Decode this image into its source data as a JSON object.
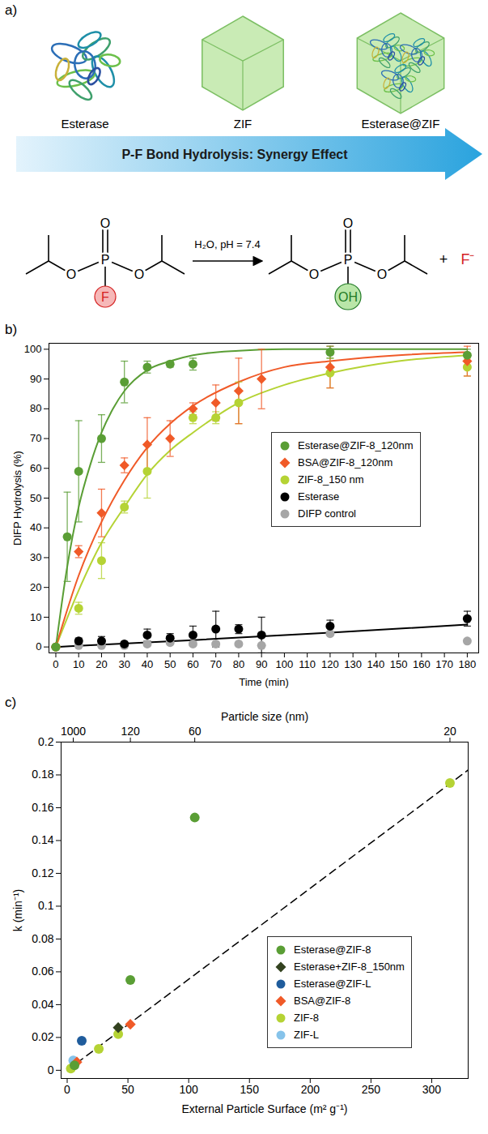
{
  "diagram": {
    "panel": "a)",
    "items": [
      "Esterase",
      "ZIF",
      "Esterase@ZIF"
    ],
    "arrow_text": "P-F Bond Hydrolysis: Synergy Effect",
    "reaction": {
      "conditions": "H₂O, pH = 7.4",
      "reactant": {
        "top": "O",
        "center": "P",
        "left": "O",
        "right": "O",
        "substituent": "F"
      },
      "product": {
        "top": "O",
        "center": "P",
        "left": "O",
        "right": "O",
        "substituent": "OH"
      },
      "plus": "+",
      "byproduct": "F⁻"
    }
  },
  "chart_data": [
    {
      "panel": "b)",
      "type": "scatter",
      "x_label": "Time (min)",
      "y_label": "DIFP Hydrolysis (%)",
      "xlim": [
        -3,
        185
      ],
      "ylim": [
        -2,
        102
      ],
      "xticks": [
        0,
        10,
        20,
        30,
        40,
        50,
        60,
        70,
        80,
        90,
        100,
        110,
        120,
        130,
        140,
        150,
        160,
        170,
        180
      ],
      "yticks": [
        0,
        10,
        20,
        30,
        40,
        50,
        60,
        70,
        80,
        90,
        100
      ],
      "legend": "right",
      "series": [
        {
          "name": "Esterase@ZIF-8_120nm",
          "color": "#5a9e35",
          "marker": "circle",
          "x": [
            0,
            5,
            10,
            20,
            30,
            40,
            50,
            60,
            120,
            180
          ],
          "values": [
            0,
            37,
            59,
            70,
            89,
            94,
            95,
            95,
            99,
            98
          ],
          "errors": [
            0,
            15,
            17,
            8,
            7,
            2,
            1,
            2,
            2,
            2
          ],
          "fit": {
            "x": [
              0,
              5,
              10,
              15,
              20,
              25,
              30,
              40,
              50,
              60,
              80,
              100,
              180
            ],
            "values": [
              0,
              27,
              47,
              61,
              72,
              80,
              86,
              93,
              96,
              98,
              99.5,
              100,
              100
            ]
          }
        },
        {
          "name": "BSA@ZIF-8_120nm",
          "color": "#f05a28",
          "marker": "diamond",
          "x": [
            0,
            10,
            20,
            30,
            40,
            50,
            60,
            70,
            80,
            90,
            120,
            180
          ],
          "values": [
            0,
            32,
            45,
            61,
            68,
            70,
            80,
            82,
            86,
            90,
            94,
            96
          ],
          "errors": [
            0,
            2,
            8,
            2.5,
            9,
            6,
            2,
            6,
            11,
            10,
            7,
            5
          ],
          "fit": {
            "x": [
              0,
              10,
              20,
              30,
              40,
              50,
              60,
              80,
              100,
              120,
              150,
              180
            ],
            "values": [
              0,
              24,
              42,
              56,
              67,
              75,
              81,
              89,
              94,
              96,
              98,
              99
            ]
          }
        },
        {
          "name": "ZIF-8_150 nm",
          "color": "#b5d334",
          "marker": "circle",
          "x": [
            0,
            10,
            20,
            30,
            40,
            60,
            70,
            80,
            120,
            180
          ],
          "values": [
            0,
            13,
            29,
            47,
            59,
            77,
            77,
            82,
            92,
            94
          ],
          "errors": [
            0,
            2,
            6,
            2,
            9,
            2,
            2,
            7,
            5,
            3
          ],
          "fit": {
            "x": [
              0,
              10,
              20,
              30,
              40,
              50,
              60,
              80,
              100,
              120,
              150,
              180
            ],
            "values": [
              0,
              19,
              35,
              47,
              58,
              66,
              72,
              82,
              88,
              92,
              96,
              98
            ]
          }
        },
        {
          "name": "Esterase",
          "color": "#000000",
          "marker": "circle",
          "x": [
            0,
            10,
            20,
            30,
            40,
            50,
            60,
            70,
            80,
            90,
            120,
            180
          ],
          "values": [
            0,
            2,
            2,
            1,
            4,
            3,
            4,
            6,
            6,
            4,
            7,
            9.5
          ],
          "errors": [
            0,
            1,
            1.5,
            0.5,
            2,
            1.5,
            3,
            6,
            1.5,
            6,
            2,
            2.5
          ],
          "fit": {
            "x": [
              0,
              60,
              120,
              180
            ],
            "values": [
              0,
              2.3,
              4.8,
              7.5
            ]
          }
        },
        {
          "name": "DIFP control",
          "color": "#a6a6a6",
          "marker": "circle",
          "x": [
            0,
            10,
            20,
            30,
            40,
            50,
            60,
            70,
            80,
            90,
            120,
            180
          ],
          "values": [
            0,
            0.5,
            0.5,
            0.5,
            1,
            1.5,
            1,
            1,
            1,
            0.5,
            4.5,
            2
          ]
        }
      ]
    },
    {
      "panel": "c)",
      "type": "scatter",
      "x_label": "External Particle Surface (m² g⁻¹)",
      "y_label": "k (min⁻¹)",
      "x2_label": "Particle size (nm)",
      "xlim": [
        -5,
        330
      ],
      "ylim": [
        -0.005,
        0.2
      ],
      "xticks": [
        0,
        50,
        100,
        150,
        200,
        250,
        300
      ],
      "yticks": [
        0,
        0.02,
        0.04,
        0.06,
        0.08,
        0.1,
        0.12,
        0.14,
        0.16,
        0.18,
        0.2
      ],
      "x2ticks": [
        {
          "value": 5,
          "label": "1000"
        },
        {
          "value": 52,
          "label": "120"
        },
        {
          "value": 105,
          "label": "60"
        },
        {
          "value": 315,
          "label": "20"
        }
      ],
      "legend": "bottom-right",
      "series": [
        {
          "name": "Esterase@ZIF-8",
          "color": "#5a9e35",
          "marker": "circle",
          "x": [
            105,
            52,
            6
          ],
          "values": [
            0.154,
            0.055,
            0.003
          ]
        },
        {
          "name": "Esterase+ZIF-8_150nm",
          "color": "#33421f",
          "marker": "diamond",
          "x": [
            42
          ],
          "values": [
            0.026
          ]
        },
        {
          "name": "Esterase@ZIF-L",
          "color": "#1f5c9c",
          "marker": "circle",
          "x": [
            12
          ],
          "values": [
            0.018
          ]
        },
        {
          "name": "BSA@ZIF-8",
          "color": "#f05a28",
          "marker": "diamond",
          "x": [
            52,
            8
          ],
          "values": [
            0.028,
            0.005
          ]
        },
        {
          "name": "ZIF-8",
          "color": "#b5d334",
          "marker": "circle",
          "x": [
            315,
            42,
            26,
            3
          ],
          "values": [
            0.175,
            0.022,
            0.013,
            0.001
          ]
        },
        {
          "name": "ZIF-L",
          "color": "#86c3ea",
          "marker": "circle",
          "x": [
            5
          ],
          "values": [
            0.006
          ]
        }
      ],
      "reference_line": {
        "x": [
          0,
          330
        ],
        "values": [
          0,
          0.183
        ],
        "color": "#000000",
        "line_style": "dashed"
      }
    }
  ]
}
